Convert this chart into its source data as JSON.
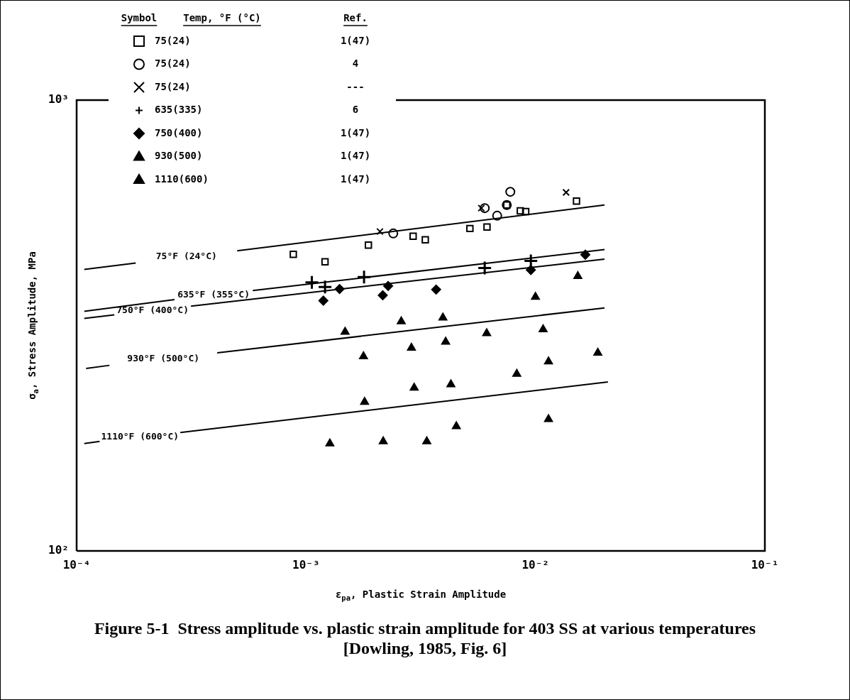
{
  "chart_data": {
    "type": "scatter",
    "title": "Figure 5-1  Stress amplitude vs. plastic strain amplitude for 403 SS at various temperatures [Dowling, 1985, Fig. 6]",
    "xlabel": "ε$_{pa}$, Plastic Strain Amplitude",
    "ylabel": "σ$_{a}$, Stress Amplitude, MPa",
    "legend_title": "Temp, °F (°C)",
    "log": "xy",
    "grid": false,
    "legend": "top left",
    "xlim": [
      0.0001,
      0.1
    ],
    "ylim": [
      100,
      1000
    ],
    "xticks": [
      {
        "value": 0.0001,
        "label": "10⁻⁴"
      },
      {
        "value": 0.001,
        "label": "10⁻³"
      },
      {
        "value": 0.01,
        "label": "10⁻²"
      },
      {
        "value": 0.1,
        "label": "10⁻¹"
      }
    ],
    "yticks": [
      {
        "value": 100,
        "label": "10²"
      },
      {
        "value": 1000,
        "label": "10³"
      }
    ],
    "series": [
      {
        "name": "75(24)",
        "color": "#000000",
        "marker": "square",
        "x": [
          0.00088,
          0.00121,
          0.00187,
          0.00293,
          0.00331,
          0.00518,
          0.00615,
          0.0075,
          0.00859,
          0.00907,
          0.0151
        ],
        "values": [
          455,
          438,
          477,
          499,
          490,
          519,
          523,
          585,
          568,
          566,
          597
        ]
      },
      {
        "name": "75(24)",
        "color": "#000000",
        "marker": "circle",
        "x": [
          0.0024,
          0.00601,
          0.00681,
          0.0075,
          0.00777
        ],
        "values": [
          506,
          576,
          554,
          585,
          626
        ]
      },
      {
        "name": "75(24)",
        "color": "#000000",
        "marker": "cross",
        "x": [
          0.0021,
          0.00581,
          0.0136
        ],
        "values": [
          511,
          576,
          624
        ]
      },
      {
        "name": "635(335)",
        "color": "#000000",
        "marker": "plus",
        "x": [
          0.00106,
          0.00121,
          0.00179,
          0.00601,
          0.00955
        ],
        "values": [
          394,
          385,
          405,
          424,
          440
        ]
      },
      {
        "name": "750(400)",
        "color": "#000000",
        "marker": "diamond",
        "x": [
          0.00119,
          0.0014,
          0.00216,
          0.00228,
          0.00369,
          0.00955,
          0.0165
        ],
        "values": [
          359,
          381,
          369,
          387,
          380,
          420,
          454
        ]
      },
      {
        "name": "930(500)",
        "color": "#000000",
        "marker": "triangle",
        "x": [
          0.00148,
          0.0026,
          0.00395,
          0.00178,
          0.00288,
          0.00406,
          0.00613,
          0.0108,
          0.01,
          0.0153
        ],
        "values": [
          306,
          323,
          329,
          270,
          282,
          291,
          304,
          310,
          366,
          407
        ]
      },
      {
        "name": "1110(600)",
        "color": "#000000",
        "marker": "triangle",
        "x": [
          0.0187,
          0.0114,
          0.00829,
          0.00428,
          0.00296,
          0.0018,
          0.0114,
          0.00452,
          0.00127,
          0.00217,
          0.00336
        ],
        "values": [
          275,
          263,
          247,
          234,
          230,
          214,
          196,
          189,
          173,
          175,
          175
        ]
      },
      {
        "type": "line",
        "color": "#000000",
        "marker": "none",
        "x": [
          0.000108,
          0.000181,
          0.000301,
          0.000501,
          0.02
        ],
        "values": [
          421,
          435,
          null,
          463,
          585
        ]
      },
      {
        "type": "line",
        "color": "#000000",
        "marker": "none",
        "x": [
          0.000108,
          0.000267,
          0.000396,
          0.000586,
          0.02
        ],
        "values": [
          340,
          361,
          null,
          378,
          466
        ]
      },
      {
        "type": "line",
        "color": "#000000",
        "marker": "none",
        "x": [
          0.000108,
          0.000146,
          0.000214,
          0.000315,
          0.02
        ],
        "values": [
          328,
          334,
          null,
          349,
          444
        ]
      },
      {
        "type": "line",
        "color": "#000000",
        "marker": "none",
        "x": [
          0.00011,
          0.000139,
          0.000239,
          0.00041,
          0.02
        ],
        "values": [
          254,
          258,
          null,
          275,
          346
        ]
      },
      {
        "type": "line",
        "color": "#000000",
        "marker": "none",
        "x": [
          0.000108,
          0.000126,
          0.000189,
          0.000283,
          0.0207
        ],
        "values": [
          173,
          175,
          null,
          183,
          237
        ]
      }
    ],
    "annotations": [
      "Symbol",
      "Ref.",
      "1(47)",
      "4",
      "---",
      "6",
      "1(47)",
      "1(47)",
      "1(47)",
      "75°F (24°C)",
      "635°F (355°C)",
      "750°F (400°C)",
      "930°F (500°C)",
      "1110°F (600°C)"
    ]
  }
}
